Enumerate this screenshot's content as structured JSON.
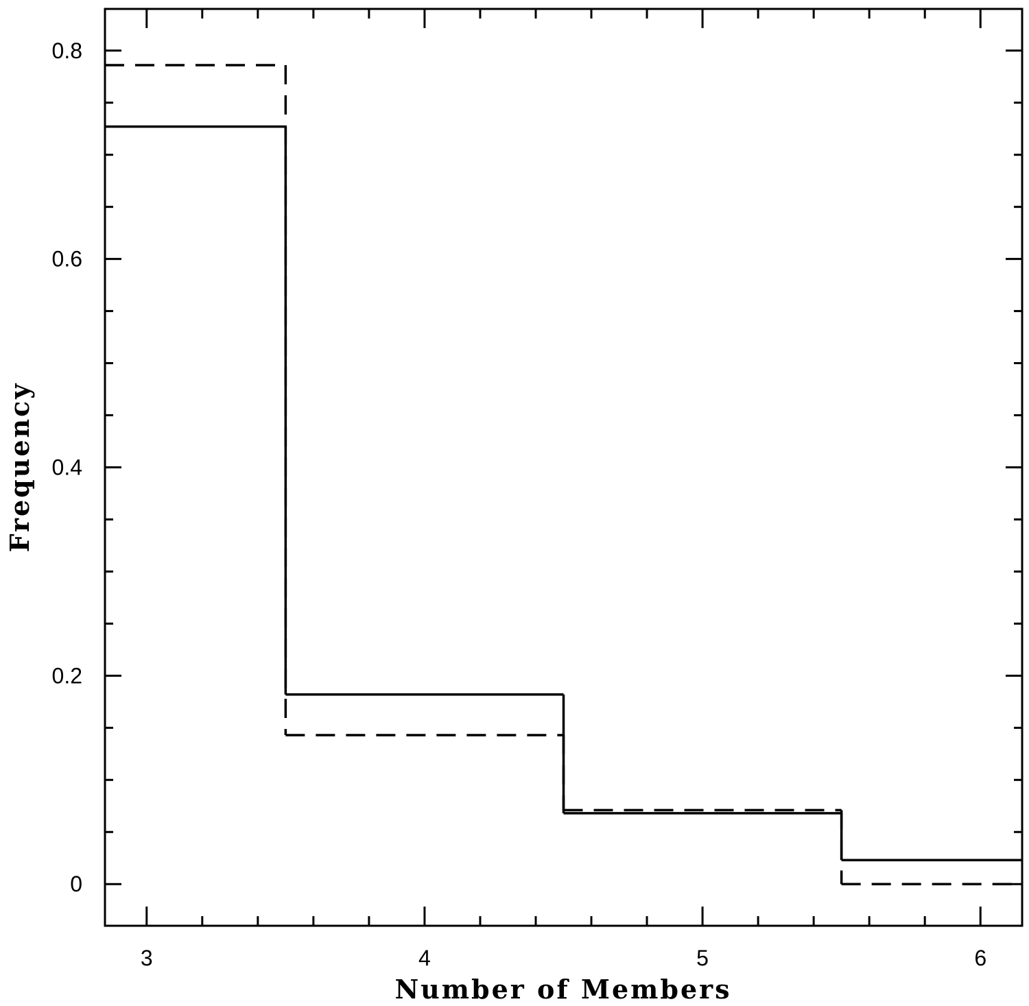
{
  "chart_data": {
    "type": "step",
    "title": "",
    "xlabel": "Number of Members",
    "ylabel": "Frequency",
    "xlim": [
      2.85,
      6.15
    ],
    "ylim": [
      -0.04,
      0.84
    ],
    "xticks": [
      {
        "value": 3,
        "label": "3"
      },
      {
        "value": 4,
        "label": "4"
      },
      {
        "value": 5,
        "label": "5"
      },
      {
        "value": 6,
        "label": "6"
      }
    ],
    "x_minor_step": 0.2,
    "yticks": [
      {
        "value": 0,
        "label": "0"
      },
      {
        "value": 0.2,
        "label": "0.2"
      },
      {
        "value": 0.4,
        "label": "0.4"
      },
      {
        "value": 0.6,
        "label": "0.6"
      },
      {
        "value": 0.8,
        "label": "0.8"
      }
    ],
    "y_minor_step": 0.05,
    "grid": false,
    "legend": "none",
    "categories": [
      3,
      4,
      5,
      6
    ],
    "series": [
      {
        "style": "solid",
        "color": "#000000",
        "values": [
          0.727,
          0.182,
          0.068,
          0.023
        ]
      },
      {
        "style": "dashed",
        "color": "#000000",
        "values": [
          0.786,
          0.143,
          0.071,
          0.0
        ]
      }
    ]
  }
}
